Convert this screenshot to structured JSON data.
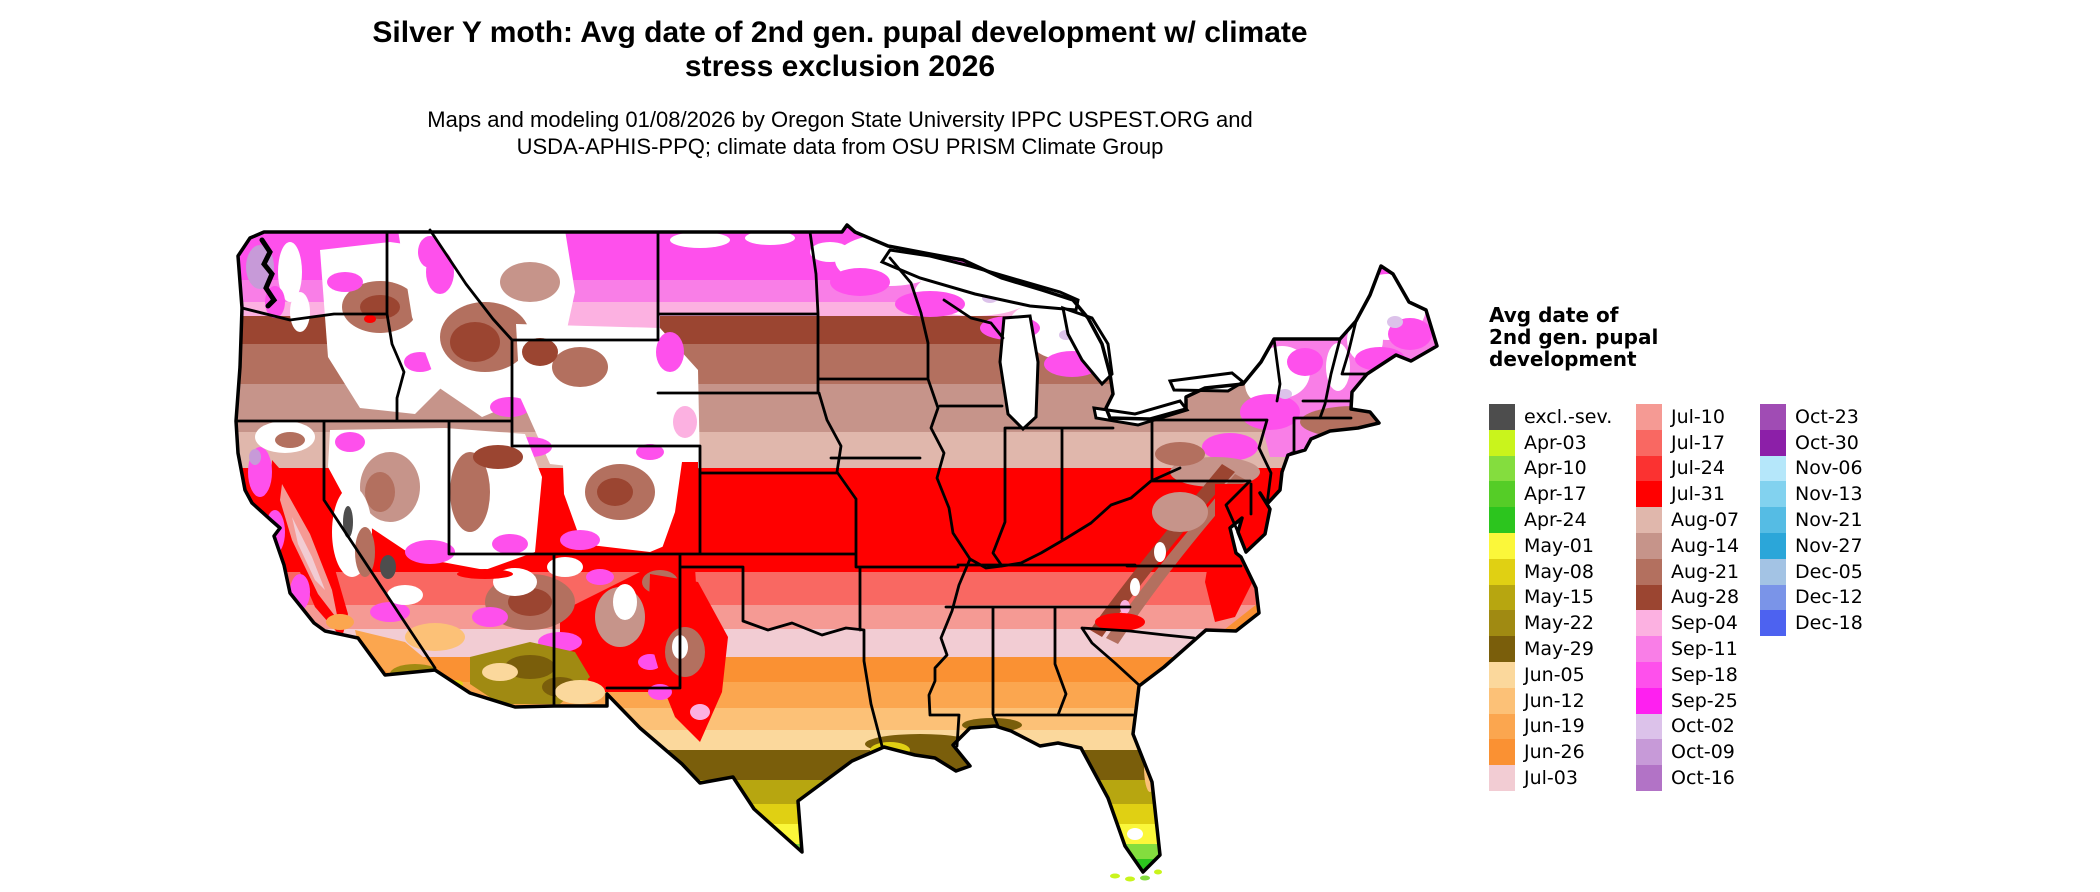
{
  "title": {
    "line1": "Silver Y moth: Avg date of 2nd gen. pupal development w/ climate",
    "line2": "stress exclusion 2026"
  },
  "subtitle": {
    "line1": "Maps and modeling 01/08/2026 by Oregon State University IPPC USPEST.ORG and",
    "line2": "USDA-APHIS-PPQ; climate data from OSU PRISM Climate Group"
  },
  "legend": {
    "title": "Avg date of\n2nd gen. pupal\ndevelopment",
    "columns": [
      [
        {
          "label": "excl.-sev.",
          "color": "excl_sev"
        },
        {
          "label": "Apr-03",
          "color": "apr03"
        },
        {
          "label": "Apr-10",
          "color": "apr10"
        },
        {
          "label": "Apr-17",
          "color": "apr17"
        },
        {
          "label": "Apr-24",
          "color": "apr24"
        },
        {
          "label": "May-01",
          "color": "may01"
        },
        {
          "label": "May-08",
          "color": "may08"
        },
        {
          "label": "May-15",
          "color": "may15"
        },
        {
          "label": "May-22",
          "color": "may22"
        },
        {
          "label": "May-29",
          "color": "may29"
        },
        {
          "label": "Jun-05",
          "color": "jun05"
        },
        {
          "label": "Jun-12",
          "color": "jun12"
        },
        {
          "label": "Jun-19",
          "color": "jun19"
        },
        {
          "label": "Jun-26",
          "color": "jun26"
        },
        {
          "label": "Jul-03",
          "color": "jul03"
        }
      ],
      [
        {
          "label": "Jul-10",
          "color": "jul10"
        },
        {
          "label": "Jul-17",
          "color": "jul17"
        },
        {
          "label": "Jul-24",
          "color": "jul24"
        },
        {
          "label": "Jul-31",
          "color": "jul31"
        },
        {
          "label": "Aug-07",
          "color": "aug07"
        },
        {
          "label": "Aug-14",
          "color": "aug14"
        },
        {
          "label": "Aug-21",
          "color": "aug21"
        },
        {
          "label": "Aug-28",
          "color": "aug28"
        },
        {
          "label": "Sep-04",
          "color": "sep04"
        },
        {
          "label": "Sep-11",
          "color": "sep11"
        },
        {
          "label": "Sep-18",
          "color": "sep18"
        },
        {
          "label": "Sep-25",
          "color": "sep25"
        },
        {
          "label": "Oct-02",
          "color": "oct02"
        },
        {
          "label": "Oct-09",
          "color": "oct09"
        },
        {
          "label": "Oct-16",
          "color": "oct16"
        }
      ],
      [
        {
          "label": "Oct-23",
          "color": "oct23"
        },
        {
          "label": "Oct-30",
          "color": "oct30"
        },
        {
          "label": "Nov-06",
          "color": "nov06"
        },
        {
          "label": "Nov-13",
          "color": "nov13"
        },
        {
          "label": "Nov-21",
          "color": "nov21"
        },
        {
          "label": "Nov-27",
          "color": "nov27"
        },
        {
          "label": "Dec-05",
          "color": "dec05"
        },
        {
          "label": "Dec-12",
          "color": "dec12"
        },
        {
          "label": "Dec-18",
          "color": "dec18"
        }
      ]
    ]
  },
  "palette": {
    "excl_sev": "#4d4d4d",
    "apr03": "#c9f41c",
    "apr10": "#84dd3e",
    "apr17": "#55cd27",
    "apr24": "#2cc51e",
    "may01": "#fbf73a",
    "may08": "#e0d013",
    "may15": "#b7a610",
    "may22": "#a08a12",
    "may29": "#7a5e0b",
    "jun05": "#fbd89c",
    "jun12": "#fcc177",
    "jun19": "#fba64f",
    "jun26": "#fa9133",
    "jul03": "#f2ccd3",
    "jul10": "#f59a94",
    "jul17": "#f96862",
    "jul24": "#fb3231",
    "jul31": "#ff0000",
    "aug07": "#e0b7ac",
    "aug14": "#c6948a",
    "aug21": "#b3705f",
    "aug28": "#9b4531",
    "sep04": "#fcb1e1",
    "sep11": "#f97ee7",
    "sep18": "#fe50ec",
    "sep25": "#fe20f0",
    "oct02": "#dcc2ea",
    "oct09": "#c79ad8",
    "oct16": "#b273c6",
    "oct23": "#a04cb4",
    "oct30": "#8c1fa8",
    "nov06": "#b5e7fa",
    "nov13": "#82d2ef",
    "nov21": "#55bce4",
    "nov27": "#2ba6d9",
    "dec05": "#a3c3e4",
    "dec12": "#7a94e8",
    "dec18": "#4d62f0",
    "white": "#ffffff",
    "black": "#000000"
  },
  "map": {
    "region": "Contiguous United States",
    "kind": "raster choropleth of average date of 2nd generation pupal development",
    "observed_gradient_north_to_south": [
      "Sep magenta/pink (northern plains, upper Great Lakes, northern New England)",
      "Aug browns (Dakotas, upper Midwest, Appalachian ridges, southern New England)",
      "Jul-24/Jul-31 red belt (Kansas through Ohio Valley to mid-Atlantic)",
      "Jul pinks / Jun oranges (southern plains and Southeast)",
      "May olive/yellow band (Gulf Coast, central Florida, southern Arizona)",
      "Apr greens (south Texas tip, south Florida)",
      "white with brown/magenta mottling (excluded mountain West)"
    ]
  }
}
